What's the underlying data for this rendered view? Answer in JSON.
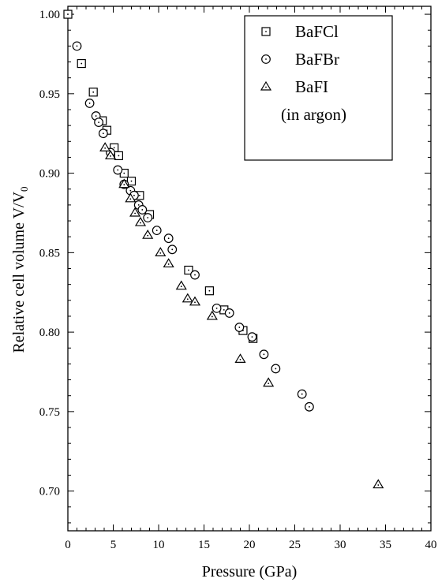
{
  "chart_data": {
    "type": "scatter",
    "xlabel": "Pressure (GPa)",
    "ylabel_main": "Relative cell volume V/V",
    "ylabel_subscript": "0",
    "xlim": [
      0,
      40
    ],
    "ylim": [
      0.675,
      1.005
    ],
    "x_ticks": [
      "0",
      "5",
      "10",
      "15",
      "20",
      "25",
      "30",
      "35",
      "40"
    ],
    "y_ticks": [
      "0.70",
      "0.75",
      "0.80",
      "0.85",
      "0.90",
      "0.95",
      "1.00"
    ],
    "legend_note": "(in argon)",
    "legend_position": "top-right",
    "series": [
      {
        "name": "BaFCl",
        "marker": "square",
        "points": [
          [
            0.0,
            1.0
          ],
          [
            1.5,
            0.969
          ],
          [
            2.8,
            0.951
          ],
          [
            3.8,
            0.933
          ],
          [
            4.3,
            0.927
          ],
          [
            5.1,
            0.916
          ],
          [
            5.6,
            0.911
          ],
          [
            6.2,
            0.9
          ],
          [
            7.0,
            0.895
          ],
          [
            7.9,
            0.886
          ],
          [
            9.0,
            0.874
          ],
          [
            13.3,
            0.839
          ],
          [
            15.6,
            0.826
          ],
          [
            17.2,
            0.814
          ],
          [
            19.3,
            0.801
          ],
          [
            20.4,
            0.796
          ]
        ]
      },
      {
        "name": "BaFBr",
        "marker": "circle",
        "points": [
          [
            1.0,
            0.98
          ],
          [
            2.4,
            0.944
          ],
          [
            3.1,
            0.936
          ],
          [
            3.4,
            0.932
          ],
          [
            3.9,
            0.925
          ],
          [
            4.7,
            0.913
          ],
          [
            5.5,
            0.902
          ],
          [
            6.2,
            0.893
          ],
          [
            6.9,
            0.889
          ],
          [
            7.3,
            0.886
          ],
          [
            7.8,
            0.88
          ],
          [
            8.2,
            0.877
          ],
          [
            8.8,
            0.872
          ],
          [
            9.8,
            0.864
          ],
          [
            11.1,
            0.859
          ],
          [
            11.5,
            0.852
          ],
          [
            14.0,
            0.836
          ],
          [
            16.4,
            0.815
          ],
          [
            17.8,
            0.812
          ],
          [
            18.9,
            0.803
          ],
          [
            20.3,
            0.797
          ],
          [
            21.6,
            0.786
          ],
          [
            22.9,
            0.777
          ],
          [
            25.8,
            0.761
          ],
          [
            26.6,
            0.753
          ]
        ]
      },
      {
        "name": "BaFI",
        "marker": "triangle",
        "points": [
          [
            4.1,
            0.916
          ],
          [
            4.7,
            0.911
          ],
          [
            6.2,
            0.893
          ],
          [
            6.9,
            0.884
          ],
          [
            7.4,
            0.875
          ],
          [
            8.0,
            0.869
          ],
          [
            8.8,
            0.861
          ],
          [
            10.2,
            0.85
          ],
          [
            11.1,
            0.843
          ],
          [
            12.5,
            0.829
          ],
          [
            13.2,
            0.821
          ],
          [
            14.0,
            0.819
          ],
          [
            15.9,
            0.81
          ],
          [
            19.0,
            0.783
          ],
          [
            22.1,
            0.768
          ],
          [
            34.2,
            0.704
          ]
        ]
      }
    ]
  }
}
